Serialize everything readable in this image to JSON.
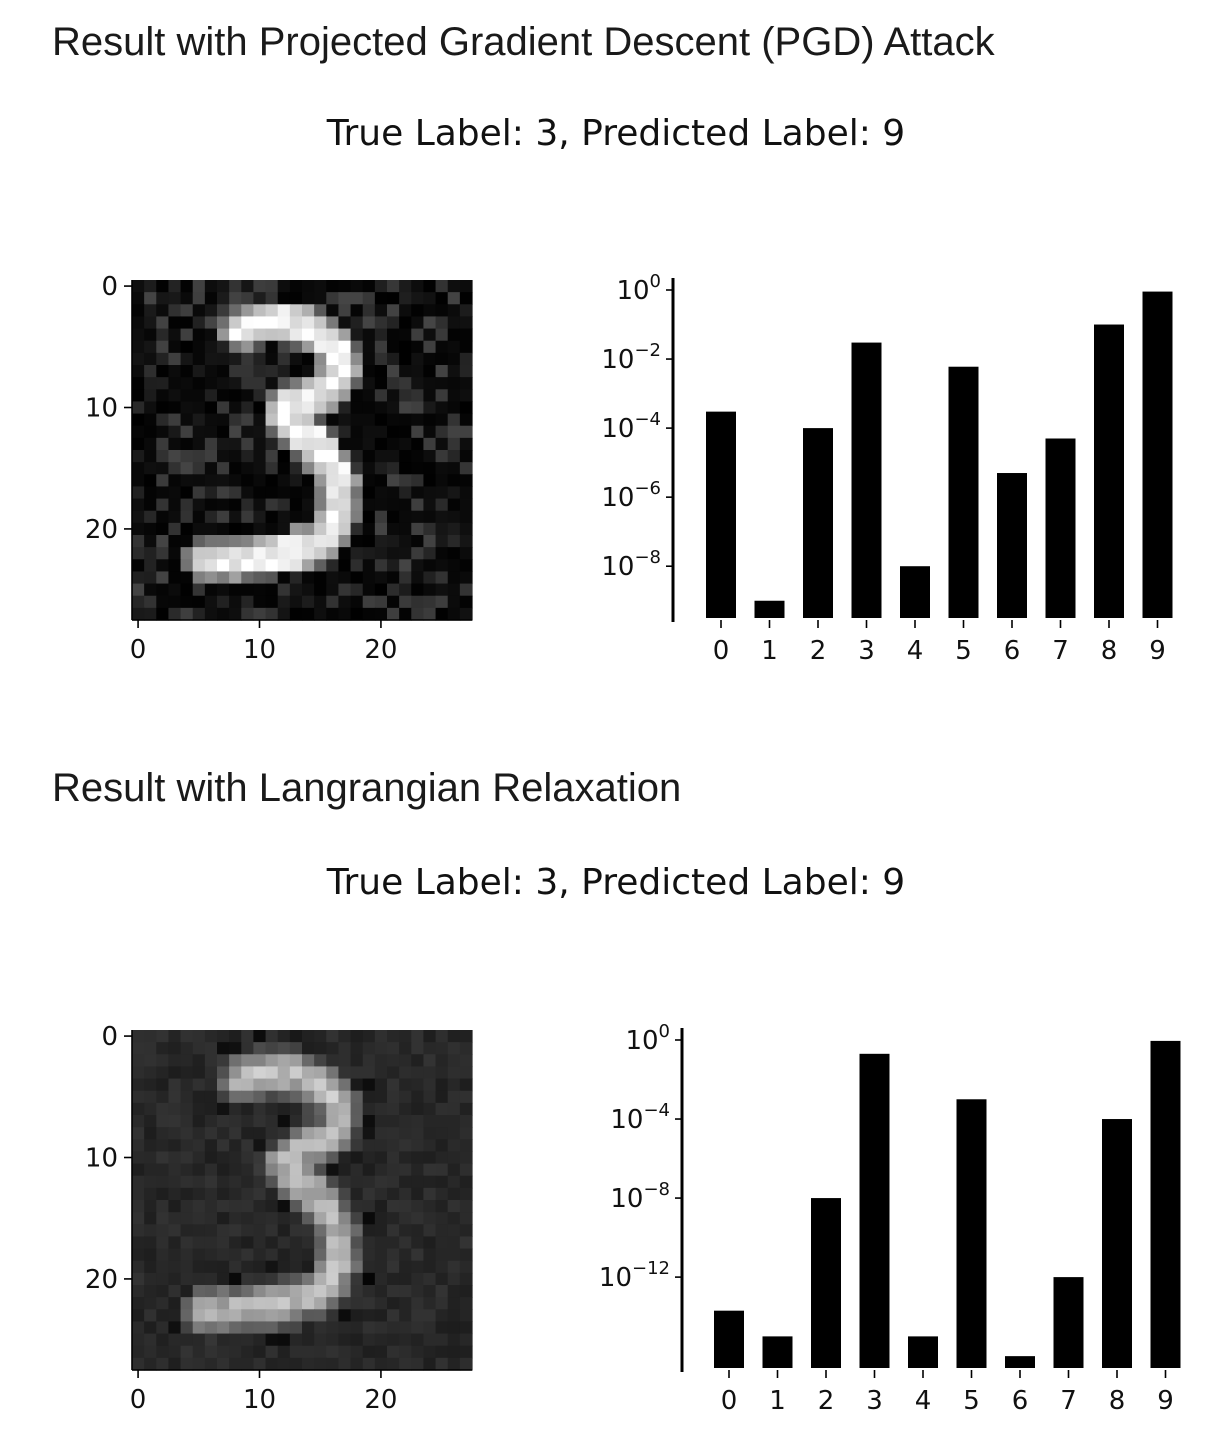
{
  "sections": [
    {
      "heading": "Result with Projected Gradient Descent (PGD) Attack",
      "figure_title": "True Label: 3, Predicted Label: 9"
    },
    {
      "heading": "Result with Langrangian Relaxation",
      "figure_title": "True Label: 3, Predicted Label: 9"
    }
  ],
  "chart_data": [
    {
      "type": "bar",
      "log_scale_y": true,
      "categories": [
        "0",
        "1",
        "2",
        "3",
        "4",
        "5",
        "6",
        "7",
        "8",
        "9"
      ],
      "values": [
        0.0003,
        1e-09,
        0.0001,
        0.03,
        1e-08,
        0.006,
        5e-06,
        5e-05,
        0.1,
        0.9
      ],
      "yticks": [
        1,
        0.01,
        0.0001,
        1e-06,
        1e-08
      ],
      "ytick_labels": [
        {
          "base": "10",
          "exp": "0"
        },
        {
          "base": "10",
          "exp": "−2"
        },
        {
          "base": "10",
          "exp": "−4"
        },
        {
          "base": "10",
          "exp": "−6"
        },
        {
          "base": "10",
          "exp": "−8"
        }
      ],
      "image": {
        "xticks": [
          "0",
          "10",
          "20"
        ],
        "yticks": [
          "0",
          "10",
          "20"
        ],
        "style": "noisy"
      }
    },
    {
      "type": "bar",
      "log_scale_y": true,
      "categories": [
        "0",
        "1",
        "2",
        "3",
        "4",
        "5",
        "6",
        "7",
        "8",
        "9"
      ],
      "values": [
        2e-14,
        1e-15,
        1e-08,
        0.2,
        1e-15,
        0.001,
        1e-16,
        1e-12,
        0.0001,
        0.9
      ],
      "yticks": [
        1,
        0.0001,
        1e-08,
        1e-12
      ],
      "ytick_labels": [
        {
          "base": "10",
          "exp": "0"
        },
        {
          "base": "10",
          "exp": "−4"
        },
        {
          "base": "10",
          "exp": "−8"
        },
        {
          "base": "10",
          "exp": "−12"
        }
      ],
      "image": {
        "xticks": [
          "0",
          "10",
          "20"
        ],
        "yticks": [
          "0",
          "10",
          "20"
        ],
        "style": "smooth"
      }
    }
  ]
}
